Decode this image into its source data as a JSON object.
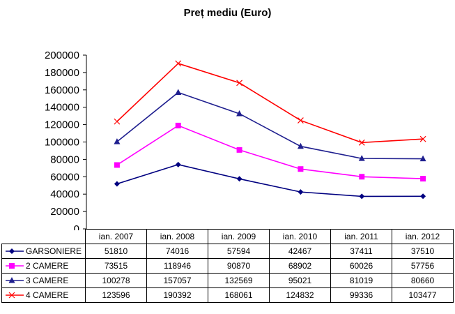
{
  "chart_data": {
    "type": "line",
    "title": "Preț mediu (Euro)",
    "categories": [
      "ian. 2007",
      "ian. 2008",
      "ian. 2009",
      "ian. 2010",
      "ian. 2011",
      "ian. 2012"
    ],
    "yticks": [
      "200000",
      "180000",
      "160000",
      "140000",
      "120000",
      "100000",
      "80000",
      "60000",
      "40000",
      "20000",
      "0"
    ],
    "ylim": [
      0,
      200000
    ],
    "grid": false,
    "legend": "data-table",
    "series": [
      {
        "name": "GARSONIERE",
        "color": "#000080",
        "marker": "diamond",
        "values": [
          51810,
          74016,
          57594,
          42467,
          37411,
          37510
        ]
      },
      {
        "name": "2 CAMERE",
        "color": "#ff00ff",
        "marker": "square",
        "values": [
          73515,
          118946,
          90870,
          68902,
          60026,
          57756
        ]
      },
      {
        "name": "3 CAMERE",
        "color": "#1f1f8f",
        "marker": "triangle",
        "values": [
          100278,
          157057,
          132569,
          95021,
          81019,
          80660
        ]
      },
      {
        "name": "4 CAMERE",
        "color": "#ff0000",
        "marker": "x",
        "values": [
          123596,
          190392,
          168061,
          124832,
          99336,
          103477
        ]
      }
    ]
  }
}
